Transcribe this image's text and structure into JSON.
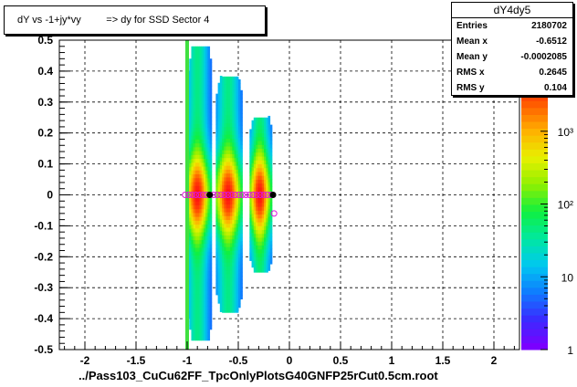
{
  "chart_data": {
    "type": "heatmap",
    "title": "dY vs -1+jy*vy         => dy for SSD Sector 4",
    "xlabel": "../Pass103_CuCu62FF_TpcOnlyPlotsG40GNFP25rCut0.5cm.root",
    "ylabel": "",
    "xlim": [
      -2.25,
      2.25
    ],
    "ylim": [
      -0.5,
      0.5
    ],
    "x_ticks": [
      "-2",
      "-1.5",
      "-1",
      "-0.5",
      "0",
      "0.5",
      "1",
      "1.5",
      "2"
    ],
    "y_ticks": [
      "-0.5",
      "-0.4",
      "-0.3",
      "-0.2",
      "-0.1",
      "0",
      "0.1",
      "0.2",
      "0.3",
      "0.4",
      "0.5"
    ],
    "z_scale": "log",
    "z_ticks": [
      "1",
      "10",
      "10²",
      "10³"
    ],
    "grid": true,
    "bands": [
      {
        "x_min": -1.0,
        "x_max": -0.76,
        "y_half_range": 0.47,
        "peak_x": -0.9
      },
      {
        "x_min": -0.72,
        "x_max": -0.47,
        "y_half_range": 0.38,
        "peak_x": -0.6
      },
      {
        "x_min": -0.39,
        "x_max": -0.18,
        "y_half_range": 0.25,
        "peak_x": -0.29
      }
    ],
    "profile_points": [
      {
        "x": -0.78,
        "y": 0.0
      },
      {
        "x": -0.16,
        "y": 0.0
      }
    ],
    "magenta_markers_y": 0.0,
    "stats": {
      "name": "dY4dy5",
      "rows": [
        {
          "key": "Entries",
          "value": "2180702"
        },
        {
          "key": "Mean x",
          "value": "-0.6512"
        },
        {
          "key": "Mean y",
          "value": "-0.0002085"
        },
        {
          "key": "RMS x",
          "value": "0.2645"
        },
        {
          "key": "RMS y",
          "value": "0.104"
        }
      ]
    }
  }
}
